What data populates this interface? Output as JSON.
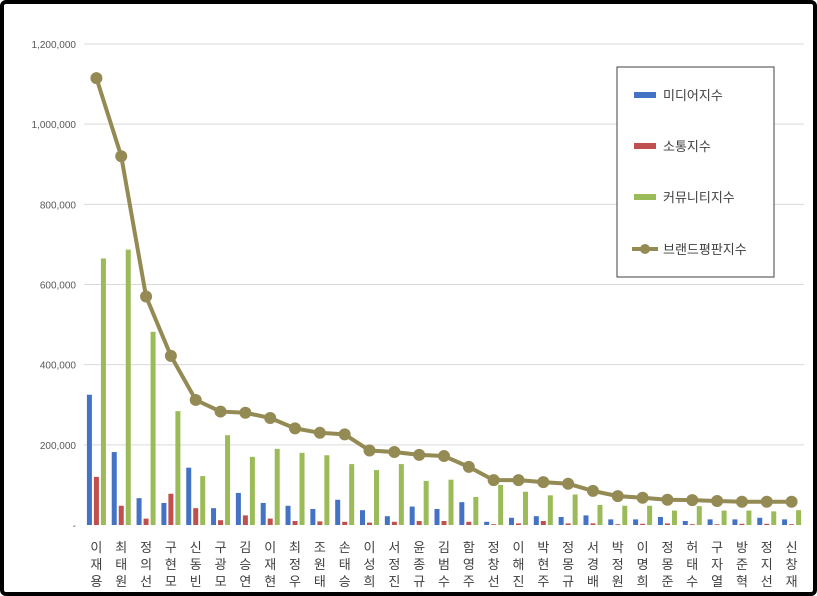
{
  "chart_data": {
    "type": "bar",
    "categories": [
      "이재용",
      "최태원",
      "정의선",
      "구현모",
      "신동빈",
      "구광모",
      "김승연",
      "이재현",
      "최정우",
      "조원태",
      "손태승",
      "이성희",
      "서정진",
      "윤종규",
      "김범수",
      "함영주",
      "정창선",
      "이해진",
      "박현주",
      "정몽규",
      "서경배",
      "박정원",
      "이명희",
      "정몽준",
      "허태수",
      "구자열",
      "방준혁",
      "정지선",
      "신창재"
    ],
    "series": [
      {
        "name": "미디어지수",
        "color": "#4472C4",
        "kind": "bar",
        "values": [
          325000,
          182000,
          67000,
          55000,
          143000,
          42000,
          80000,
          55000,
          48000,
          40000,
          63000,
          37000,
          22000,
          46000,
          40000,
          57000,
          8000,
          18000,
          22000,
          20000,
          24000,
          14000,
          14000,
          20000,
          10000,
          14000,
          14000,
          18000,
          14000
        ]
      },
      {
        "name": "소통지수",
        "color": "#C0504D",
        "kind": "bar",
        "values": [
          120000,
          48000,
          16000,
          78000,
          42000,
          12000,
          24000,
          16000,
          10000,
          9000,
          8000,
          6000,
          8000,
          10000,
          10000,
          8000,
          2000,
          4000,
          10000,
          4000,
          4000,
          2000,
          3000,
          4000,
          2000,
          2000,
          3000,
          3000,
          2000
        ]
      },
      {
        "name": "커뮤니티지수",
        "color": "#9BBB59",
        "kind": "bar",
        "values": [
          665000,
          687000,
          482000,
          284000,
          122000,
          224000,
          170000,
          190000,
          180000,
          174000,
          152000,
          137000,
          152000,
          110000,
          113000,
          70000,
          100000,
          83000,
          74000,
          76000,
          50000,
          48000,
          48000,
          36000,
          47000,
          36000,
          36000,
          34000,
          37000
        ]
      },
      {
        "name": "브랜드평판지수",
        "color": "#948A54",
        "kind": "line",
        "values": [
          1115000,
          920000,
          570000,
          422000,
          312000,
          283000,
          280000,
          267000,
          241000,
          230000,
          226000,
          186000,
          182000,
          175000,
          172000,
          145000,
          112000,
          112000,
          107000,
          103000,
          85000,
          72000,
          68000,
          63000,
          62000,
          60000,
          58000,
          58000,
          58000
        ]
      }
    ],
    "yticks": [
      0,
      200000,
      400000,
      600000,
      800000,
      1000000,
      1200000
    ],
    "ytick_labels": [
      "-",
      "200,000",
      "400,000",
      "600,000",
      "800,000",
      "1,000,000",
      "1,200,000"
    ],
    "ylim": [
      0,
      1200000
    ],
    "grid": true,
    "legend_position": "top-right"
  }
}
